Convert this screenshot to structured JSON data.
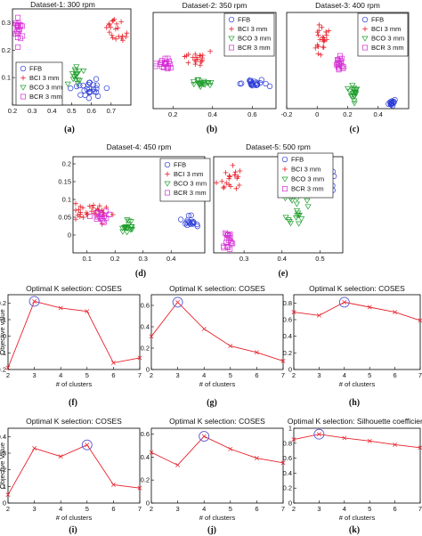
{
  "figure": {
    "colors": {
      "FFB": "#2a3bd6",
      "BCI": "#e8202a",
      "BCO": "#1f9e2c",
      "BCR": "#d62fd6",
      "line": "#e8202a",
      "highlight": "#5b5bd6"
    }
  },
  "chart_data": [
    {
      "id": "a",
      "type": "scatter",
      "caption": "(a)",
      "title": "Dataset-1: 300 rpm",
      "xlim": [
        0.2,
        0.8
      ],
      "ylim": [
        0,
        0.35
      ],
      "xticks": [
        {
          "v": 0.2,
          "label": "0.2"
        },
        {
          "v": 0.3,
          "label": "0.3"
        },
        {
          "v": 0.4,
          "label": "0.4"
        },
        {
          "v": 0.5,
          "label": "0.5"
        },
        {
          "v": 0.6,
          "label": "0.6"
        },
        {
          "v": 0.7,
          "label": "0.7"
        }
      ],
      "yticks": [
        {
          "v": 0.1,
          "label": "0.1"
        },
        {
          "v": 0.2,
          "label": "0.2"
        },
        {
          "v": 0.3,
          "label": "0.3"
        }
      ],
      "legend": {
        "position": "left",
        "entries": [
          "FFB",
          "BCI 3 mm",
          "BCO 3 mm",
          "BCR 3 mm"
        ]
      },
      "clusters": [
        {
          "series": "FFB",
          "cx": 0.59,
          "cy": 0.06,
          "sx": 0.04,
          "sy": 0.02,
          "n": 25
        },
        {
          "series": "BCI",
          "cx": 0.72,
          "cy": 0.28,
          "sx": 0.025,
          "sy": 0.02,
          "n": 22
        },
        {
          "series": "BCO",
          "cx": 0.52,
          "cy": 0.11,
          "sx": 0.015,
          "sy": 0.02,
          "n": 16
        },
        {
          "series": "BCR",
          "cx": 0.23,
          "cy": 0.28,
          "sx": 0.008,
          "sy": 0.035,
          "n": 20
        }
      ]
    },
    {
      "id": "b",
      "type": "scatter",
      "caption": "(b)",
      "title": "Dataset-2: 350 rpm",
      "xlim": [
        0.1,
        0.72
      ],
      "ylim": [
        -0.1,
        0.35
      ],
      "xticks": [
        {
          "v": 0.2,
          "label": "0.2"
        },
        {
          "v": 0.4,
          "label": "0.4"
        },
        {
          "v": 0.6,
          "label": "0.6"
        }
      ],
      "yticks": [],
      "legend": {
        "position": "top-right",
        "entries": [
          "FFB",
          "BCI 3 mm",
          "BCO 3 mm",
          "BCR 3 mm"
        ]
      },
      "clusters": [
        {
          "series": "FFB",
          "cx": 0.61,
          "cy": 0.02,
          "sx": 0.035,
          "sy": 0.01,
          "n": 22
        },
        {
          "series": "BCI",
          "cx": 0.32,
          "cy": 0.13,
          "sx": 0.035,
          "sy": 0.025,
          "n": 20
        },
        {
          "series": "BCO",
          "cx": 0.34,
          "cy": 0.02,
          "sx": 0.03,
          "sy": 0.01,
          "n": 20
        },
        {
          "series": "BCR",
          "cx": 0.16,
          "cy": 0.11,
          "sx": 0.02,
          "sy": 0.015,
          "n": 20
        }
      ]
    },
    {
      "id": "c",
      "type": "scatter",
      "caption": "(c)",
      "title": "Dataset-3: 400 rpm",
      "xlim": [
        -0.2,
        0.6
      ],
      "ylim": [
        0,
        0.8
      ],
      "xticks": [
        {
          "v": -0.2,
          "label": "-0.2"
        },
        {
          "v": 0,
          "label": "0"
        },
        {
          "v": 0.2,
          "label": "0.2"
        },
        {
          "v": 0.4,
          "label": "0.4"
        }
      ],
      "yticks": [],
      "legend": {
        "position": "top-right",
        "entries": [
          "FFB",
          "BCI 3 mm",
          "BCO 3 mm",
          "BCR 3 mm"
        ]
      },
      "clusters": [
        {
          "series": "FFB",
          "cx": 0.49,
          "cy": 0.05,
          "sx": 0.012,
          "sy": 0.015,
          "n": 15
        },
        {
          "series": "BCI",
          "cx": 0.03,
          "cy": 0.6,
          "sx": 0.02,
          "sy": 0.06,
          "n": 22
        },
        {
          "series": "BCO",
          "cx": 0.24,
          "cy": 0.13,
          "sx": 0.012,
          "sy": 0.04,
          "n": 20
        },
        {
          "series": "BCR",
          "cx": 0.15,
          "cy": 0.38,
          "sx": 0.012,
          "sy": 0.04,
          "n": 18
        }
      ]
    },
    {
      "id": "d",
      "type": "scatter",
      "caption": "(d)",
      "title": "Dataset-4: 450 rpm",
      "xlim": [
        0.05,
        0.52
      ],
      "ylim": [
        -0.05,
        0.22
      ],
      "xticks": [
        {
          "v": 0.1,
          "label": "0.1"
        },
        {
          "v": 0.2,
          "label": "0.2"
        },
        {
          "v": 0.3,
          "label": "0.3"
        },
        {
          "v": 0.4,
          "label": "0.4"
        }
      ],
      "yticks": [
        {
          "v": 0,
          "label": "0"
        },
        {
          "v": 0.05,
          "label": "0.05"
        },
        {
          "v": 0.1,
          "label": "0.1"
        },
        {
          "v": 0.15,
          "label": "0.15"
        },
        {
          "v": 0.2,
          "label": "0.2"
        }
      ],
      "legend": {
        "position": "top-right",
        "entries": [
          "FFB",
          "BCI 3 mm",
          "BCO 3 mm",
          "BCR 3 mm"
        ]
      },
      "clusters": [
        {
          "series": "FFB",
          "cx": 0.46,
          "cy": 0.035,
          "sx": 0.015,
          "sy": 0.008,
          "n": 16
        },
        {
          "series": "BCI",
          "cx": 0.11,
          "cy": 0.065,
          "sx": 0.04,
          "sy": 0.01,
          "n": 30
        },
        {
          "series": "BCO",
          "cx": 0.245,
          "cy": 0.025,
          "sx": 0.012,
          "sy": 0.008,
          "n": 20
        },
        {
          "series": "BCR",
          "cx": 0.15,
          "cy": 0.055,
          "sx": 0.015,
          "sy": 0.01,
          "n": 18
        }
      ]
    },
    {
      "id": "e",
      "type": "scatter",
      "caption": "(e)",
      "title": "Dataset-5: 500 rpm",
      "xlim": [
        0.22,
        0.56
      ],
      "ylim": [
        -0.1,
        0.3
      ],
      "xticks": [
        {
          "v": 0.3,
          "label": "0.3"
        },
        {
          "v": 0.4,
          "label": "0.4"
        },
        {
          "v": 0.5,
          "label": "0.5"
        }
      ],
      "yticks": [],
      "legend": {
        "position": "top-right",
        "entries": [
          "FFB",
          "BCI 3 mm",
          "BCO 3 mm",
          "BCR 3 mm"
        ]
      },
      "clusters": [
        {
          "series": "FFB",
          "cx": 0.51,
          "cy": 0.22,
          "sx": 0.012,
          "sy": 0.025,
          "n": 20
        },
        {
          "series": "BCI",
          "cx": 0.26,
          "cy": 0.21,
          "sx": 0.018,
          "sy": 0.03,
          "n": 20
        },
        {
          "series": "BCO",
          "cx": 0.44,
          "cy": 0.09,
          "sx": 0.012,
          "sy": 0.035,
          "n": 20
        },
        {
          "series": "BCR",
          "cx": 0.255,
          "cy": -0.05,
          "sx": 0.008,
          "sy": 0.025,
          "n": 18
        }
      ]
    },
    {
      "id": "f",
      "type": "line",
      "caption": "(f)",
      "title": "Optimal K selection: COSES",
      "xlabel": "# of clusters",
      "ylabel": "Objective value",
      "x": [
        2,
        3,
        4,
        5,
        6,
        7
      ],
      "y": [
        -0.19,
        0.21,
        0.17,
        0.15,
        -0.16,
        -0.13
      ],
      "xlim": [
        2,
        7
      ],
      "ylim": [
        -0.2,
        0.25
      ],
      "highlight_index": 1,
      "xticks": [
        {
          "v": 2,
          "label": "2"
        },
        {
          "v": 3,
          "label": "3"
        },
        {
          "v": 4,
          "label": "4"
        },
        {
          "v": 5,
          "label": "5"
        },
        {
          "v": 6,
          "label": "6"
        },
        {
          "v": 7,
          "label": "7"
        }
      ],
      "yticks": [
        {
          "v": -0.2,
          "label": "-0.2"
        },
        {
          "v": -0.1,
          "label": "-0.1"
        },
        {
          "v": 0,
          "label": "0"
        },
        {
          "v": 0.1,
          "label": "0.1"
        },
        {
          "v": 0.2,
          "label": "0.2"
        }
      ]
    },
    {
      "id": "g",
      "type": "line",
      "caption": "(g)",
      "title": "Optimal K selection: COSES",
      "xlabel": "# of clusters",
      "ylabel": "",
      "x": [
        2,
        3,
        4,
        5,
        6,
        7
      ],
      "y": [
        0.31,
        0.63,
        0.38,
        0.22,
        0.16,
        0.08
      ],
      "xlim": [
        2,
        7
      ],
      "ylim": [
        0,
        0.7
      ],
      "highlight_index": 1,
      "xticks": [
        {
          "v": 2,
          "label": "2"
        },
        {
          "v": 3,
          "label": "3"
        },
        {
          "v": 4,
          "label": "4"
        },
        {
          "v": 5,
          "label": "5"
        },
        {
          "v": 6,
          "label": "6"
        },
        {
          "v": 7,
          "label": "7"
        }
      ],
      "yticks": [
        {
          "v": 0,
          "label": "0"
        },
        {
          "v": 0.2,
          "label": "0.2"
        },
        {
          "v": 0.4,
          "label": "0.4"
        },
        {
          "v": 0.6,
          "label": "0.6"
        }
      ]
    },
    {
      "id": "h",
      "type": "line",
      "caption": "(h)",
      "title": "Optimal K selection: COSES",
      "xlabel": "# of clusters",
      "ylabel": "",
      "x": [
        2,
        3,
        4,
        5,
        6,
        7
      ],
      "y": [
        0.69,
        0.65,
        0.81,
        0.75,
        0.69,
        0.59
      ],
      "xlim": [
        2,
        7
      ],
      "ylim": [
        0,
        0.9
      ],
      "highlight_index": 2,
      "xticks": [
        {
          "v": 2,
          "label": "2"
        },
        {
          "v": 3,
          "label": "3"
        },
        {
          "v": 4,
          "label": "4"
        },
        {
          "v": 5,
          "label": "5"
        },
        {
          "v": 6,
          "label": "6"
        },
        {
          "v": 7,
          "label": "7"
        }
      ],
      "yticks": [
        {
          "v": 0,
          "label": "0"
        },
        {
          "v": 0.2,
          "label": "0.2"
        },
        {
          "v": 0.4,
          "label": "0.4"
        },
        {
          "v": 0.6,
          "label": "0.6"
        },
        {
          "v": 0.8,
          "label": "0.8"
        }
      ]
    },
    {
      "id": "i",
      "type": "line",
      "caption": "(i)",
      "title": "Optimal K selection: COSES",
      "xlabel": "# of clusters",
      "ylabel": "Objective Value",
      "x": [
        2,
        3,
        4,
        5,
        6,
        7
      ],
      "y": [
        0.05,
        0.33,
        0.28,
        0.35,
        0.11,
        0.09
      ],
      "xlim": [
        2,
        7
      ],
      "ylim": [
        0,
        0.45
      ],
      "highlight_index": 3,
      "xticks": [
        {
          "v": 2,
          "label": "2"
        },
        {
          "v": 3,
          "label": "3"
        },
        {
          "v": 4,
          "label": "4"
        },
        {
          "v": 5,
          "label": "5"
        },
        {
          "v": 6,
          "label": "6"
        },
        {
          "v": 7,
          "label": "7"
        }
      ],
      "yticks": [
        {
          "v": 0,
          "label": "0"
        },
        {
          "v": 0.1,
          "label": "0.1"
        },
        {
          "v": 0.2,
          "label": "0.2"
        },
        {
          "v": 0.3,
          "label": "0.3"
        },
        {
          "v": 0.4,
          "label": "0.4"
        }
      ]
    },
    {
      "id": "j",
      "type": "line",
      "caption": "(j)",
      "title": "Optimal K selection: COSES",
      "xlabel": "# of clusters",
      "ylabel": "",
      "x": [
        2,
        3,
        4,
        5,
        6,
        7
      ],
      "y": [
        0.44,
        0.33,
        0.58,
        0.47,
        0.39,
        0.35
      ],
      "xlim": [
        2,
        7
      ],
      "ylim": [
        0,
        0.65
      ],
      "highlight_index": 2,
      "xticks": [
        {
          "v": 2,
          "label": "2"
        },
        {
          "v": 3,
          "label": "3"
        },
        {
          "v": 4,
          "label": "4"
        },
        {
          "v": 5,
          "label": "5"
        },
        {
          "v": 6,
          "label": "6"
        },
        {
          "v": 7,
          "label": "7"
        }
      ],
      "yticks": [
        {
          "v": 0,
          "label": "0"
        },
        {
          "v": 0.2,
          "label": "0.2"
        },
        {
          "v": 0.4,
          "label": "0.4"
        },
        {
          "v": 0.6,
          "label": "0.6"
        }
      ]
    },
    {
      "id": "k",
      "type": "line",
      "caption": "(k)",
      "title": "Optimal K selection: Silhouette coefficient",
      "xlabel": "# of clusters",
      "ylabel": "",
      "x": [
        2,
        3,
        4,
        5,
        6,
        7
      ],
      "y": [
        0.85,
        0.92,
        0.87,
        0.83,
        0.78,
        0.74
      ],
      "xlim": [
        2,
        7
      ],
      "ylim": [
        0,
        1
      ],
      "highlight_index": 1,
      "xticks": [
        {
          "v": 2,
          "label": "2"
        },
        {
          "v": 3,
          "label": "3"
        },
        {
          "v": 4,
          "label": "4"
        },
        {
          "v": 5,
          "label": "5"
        },
        {
          "v": 6,
          "label": "6"
        },
        {
          "v": 7,
          "label": "7"
        }
      ],
      "yticks": [
        {
          "v": 0,
          "label": "0"
        },
        {
          "v": 0.2,
          "label": "0.2"
        },
        {
          "v": 0.4,
          "label": "0.4"
        },
        {
          "v": 0.6,
          "label": "0.6"
        },
        {
          "v": 0.8,
          "label": "0.8"
        },
        {
          "v": 1,
          "label": "1"
        }
      ]
    }
  ]
}
